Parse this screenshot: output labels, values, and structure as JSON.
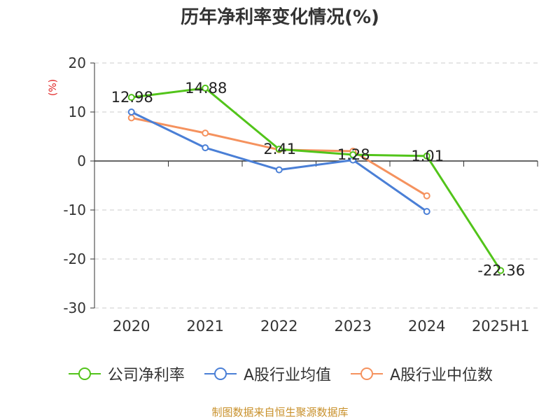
{
  "chart_data": {
    "type": "line",
    "title": "历年净利率变化情况(%)",
    "ylabel": "(%)",
    "ylim": [
      -30,
      20
    ],
    "yticks": [
      20,
      10,
      0,
      -10,
      -20,
      -30
    ],
    "categories": [
      "2020",
      "2021",
      "2022",
      "2023",
      "2024",
      "2025H1"
    ],
    "grid": true,
    "legend_position": "bottom",
    "series": [
      {
        "name": "公司净利率",
        "color": "#52c41a",
        "values": [
          12.98,
          14.88,
          2.41,
          1.28,
          1.01,
          -22.36
        ],
        "labels": [
          "12.98",
          "14.88",
          "2.41",
          "1.28",
          "1.01",
          "-22.36"
        ]
      },
      {
        "name": "A股行业均值",
        "color": "#4a7fd6",
        "values": [
          10.0,
          2.7,
          -1.8,
          0.2,
          -10.3,
          null
        ],
        "labels": []
      },
      {
        "name": "A股行业中位数",
        "color": "#f5925e",
        "values": [
          8.8,
          5.7,
          2.3,
          2.0,
          -7.1,
          null
        ],
        "labels": []
      }
    ]
  },
  "source_note": "制图数据来自恒生聚源数据库"
}
